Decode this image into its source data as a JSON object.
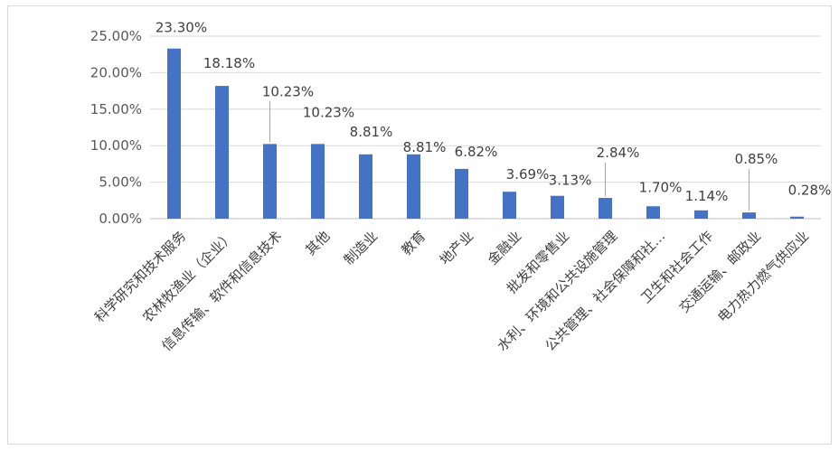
{
  "chart_data": {
    "type": "bar",
    "categories": [
      "科学研究和技术服务",
      "农林牧渔业（企业）",
      "信息传输、软件和信息技术",
      "其他",
      "制造业",
      "教育",
      "地产业",
      "金融业",
      "批发和零售业",
      "水利、环境和公共设施管理",
      "公共管理、社会保障和社…",
      "卫生和社会工作",
      "交通运输、邮政业",
      "电力热力燃气供应业"
    ],
    "values": [
      23.3,
      18.18,
      10.23,
      10.23,
      8.81,
      8.81,
      6.82,
      3.69,
      3.13,
      2.84,
      1.7,
      1.14,
      0.85,
      0.28
    ],
    "data_labels": [
      "23.30%",
      "18.18%",
      "10.23%",
      "10.23%",
      "8.81%",
      "8.81%",
      "6.82%",
      "3.69%",
      "3.13%",
      "2.84%",
      "1.70%",
      "1.14%",
      "0.85%",
      "0.28%"
    ],
    "y_ticks": [
      "0.00%",
      "5.00%",
      "10.00%",
      "15.00%",
      "20.00%",
      "25.00%"
    ],
    "ylim": [
      0,
      25
    ],
    "grid": true,
    "bar_color": "#4472c4",
    "title": "",
    "xlabel": "",
    "ylabel": ""
  }
}
